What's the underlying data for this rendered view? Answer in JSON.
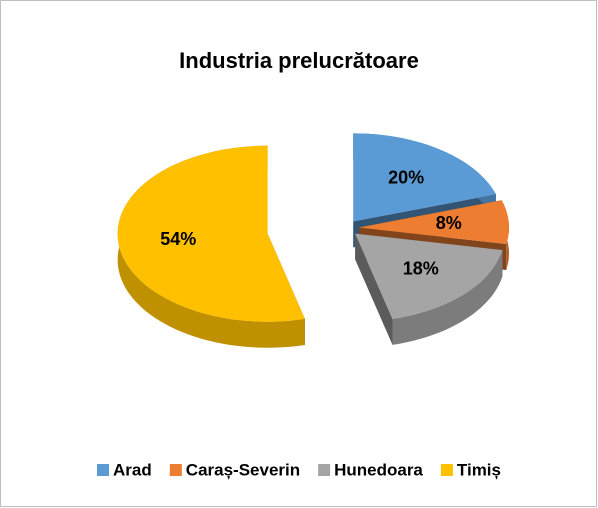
{
  "chart_data": {
    "type": "pie3d",
    "title": "Industria prelucrătoare",
    "categories": [
      "Arad",
      "Caraș-Severin",
      "Hunedoara",
      "Timiș"
    ],
    "values": [
      20,
      8,
      18,
      54
    ],
    "value_labels": [
      "20%",
      "8%",
      "18%",
      "54%"
    ],
    "colors": [
      "#5b9bd5",
      "#ed7d31",
      "#a5a5a5",
      "#ffc000"
    ],
    "legend": "bottom"
  }
}
